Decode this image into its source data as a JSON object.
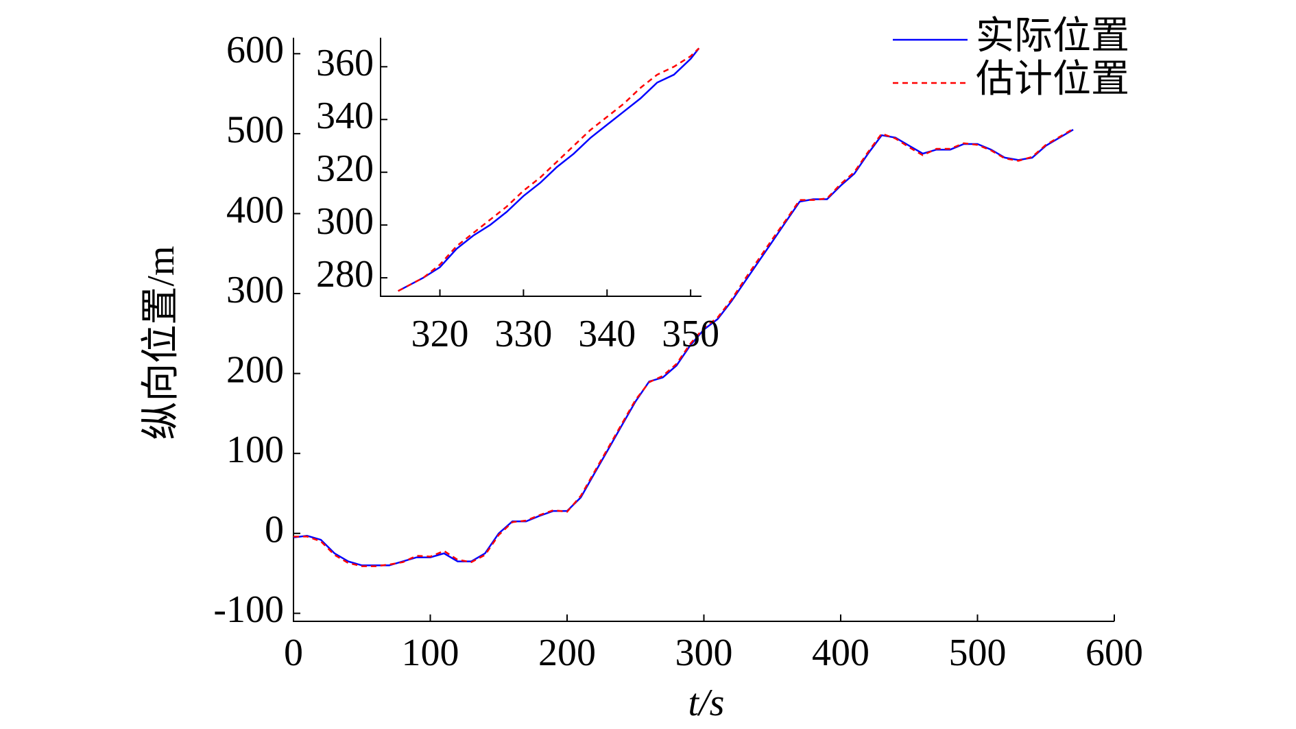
{
  "chart_data": [
    {
      "type": "line",
      "x_label": "t/s",
      "y_label": "纵向位置/m",
      "x": [
        0,
        10,
        20,
        30,
        40,
        50,
        60,
        70,
        80,
        90,
        100,
        110,
        120,
        130,
        140,
        150,
        160,
        170,
        180,
        190,
        200,
        210,
        220,
        230,
        240,
        250,
        260,
        270,
        280,
        290,
        300,
        310,
        320,
        330,
        340,
        350,
        360,
        370,
        380,
        390,
        400,
        410,
        420,
        430,
        440,
        450,
        460,
        470,
        480,
        490,
        500,
        510,
        520,
        530,
        540,
        550,
        560,
        570
      ],
      "series": [
        {
          "name": "实际位置",
          "color": "#0000ff",
          "dash": false,
          "values": [
            -5,
            -3,
            -8,
            -25,
            -35,
            -40,
            -40,
            -40,
            -35,
            -30,
            -30,
            -25,
            -35,
            -35,
            -25,
            0,
            15,
            15,
            22,
            28,
            28,
            45,
            75,
            105,
            135,
            165,
            190,
            195,
            210,
            235,
            255,
            268,
            290,
            315,
            340,
            365,
            390,
            415,
            418,
            418,
            435,
            450,
            475,
            498,
            495,
            485,
            475,
            480,
            480,
            487,
            487,
            480,
            470,
            467,
            470,
            485,
            495,
            505
          ]
        },
        {
          "name": "估计位置",
          "color": "#ff0000",
          "dash": true,
          "values": [
            -4,
            -4,
            -10,
            -27,
            -37,
            -41,
            -41,
            -39,
            -36,
            -28,
            -29,
            -22,
            -33,
            -36,
            -27,
            -2,
            14,
            16,
            23,
            29,
            27,
            47,
            77,
            107,
            137,
            167,
            189,
            197,
            212,
            237,
            257,
            270,
            292,
            318,
            343,
            368,
            392,
            417,
            417,
            419,
            437,
            452,
            477,
            500,
            494,
            483,
            473,
            481,
            481,
            488,
            486,
            479,
            469,
            466,
            471,
            486,
            496,
            506
          ]
        }
      ],
      "xlim": [
        0,
        600
      ],
      "xticks": [
        0,
        100,
        200,
        300,
        400,
        500,
        600
      ],
      "ylim": [
        -110,
        620
      ],
      "yticks": [
        -100,
        0,
        100,
        200,
        300,
        400,
        500,
        600
      ],
      "legend": "top-right"
    },
    {
      "type": "line",
      "x": [
        315,
        318,
        320,
        322,
        324,
        326,
        328,
        330,
        332,
        334,
        336,
        338,
        340,
        342,
        344,
        346,
        348,
        350,
        351
      ],
      "series": [
        {
          "color": "#0000ff",
          "dash": false,
          "values": [
            275,
            280,
            284,
            291,
            296,
            300,
            305,
            311,
            316,
            322,
            327,
            333,
            338,
            343,
            348,
            354,
            357,
            363,
            367
          ]
        },
        {
          "color": "#ff0000",
          "dash": true,
          "values": [
            275,
            280,
            285,
            292,
            297,
            302,
            307,
            313,
            318,
            324,
            330,
            336,
            341,
            346,
            352,
            357,
            360,
            364,
            367
          ]
        }
      ],
      "xlim": [
        312.9,
        351.3
      ],
      "xticks": [
        320,
        330,
        340,
        350
      ],
      "ylim": [
        273,
        371
      ],
      "yticks": [
        280,
        300,
        320,
        340,
        360
      ]
    }
  ]
}
